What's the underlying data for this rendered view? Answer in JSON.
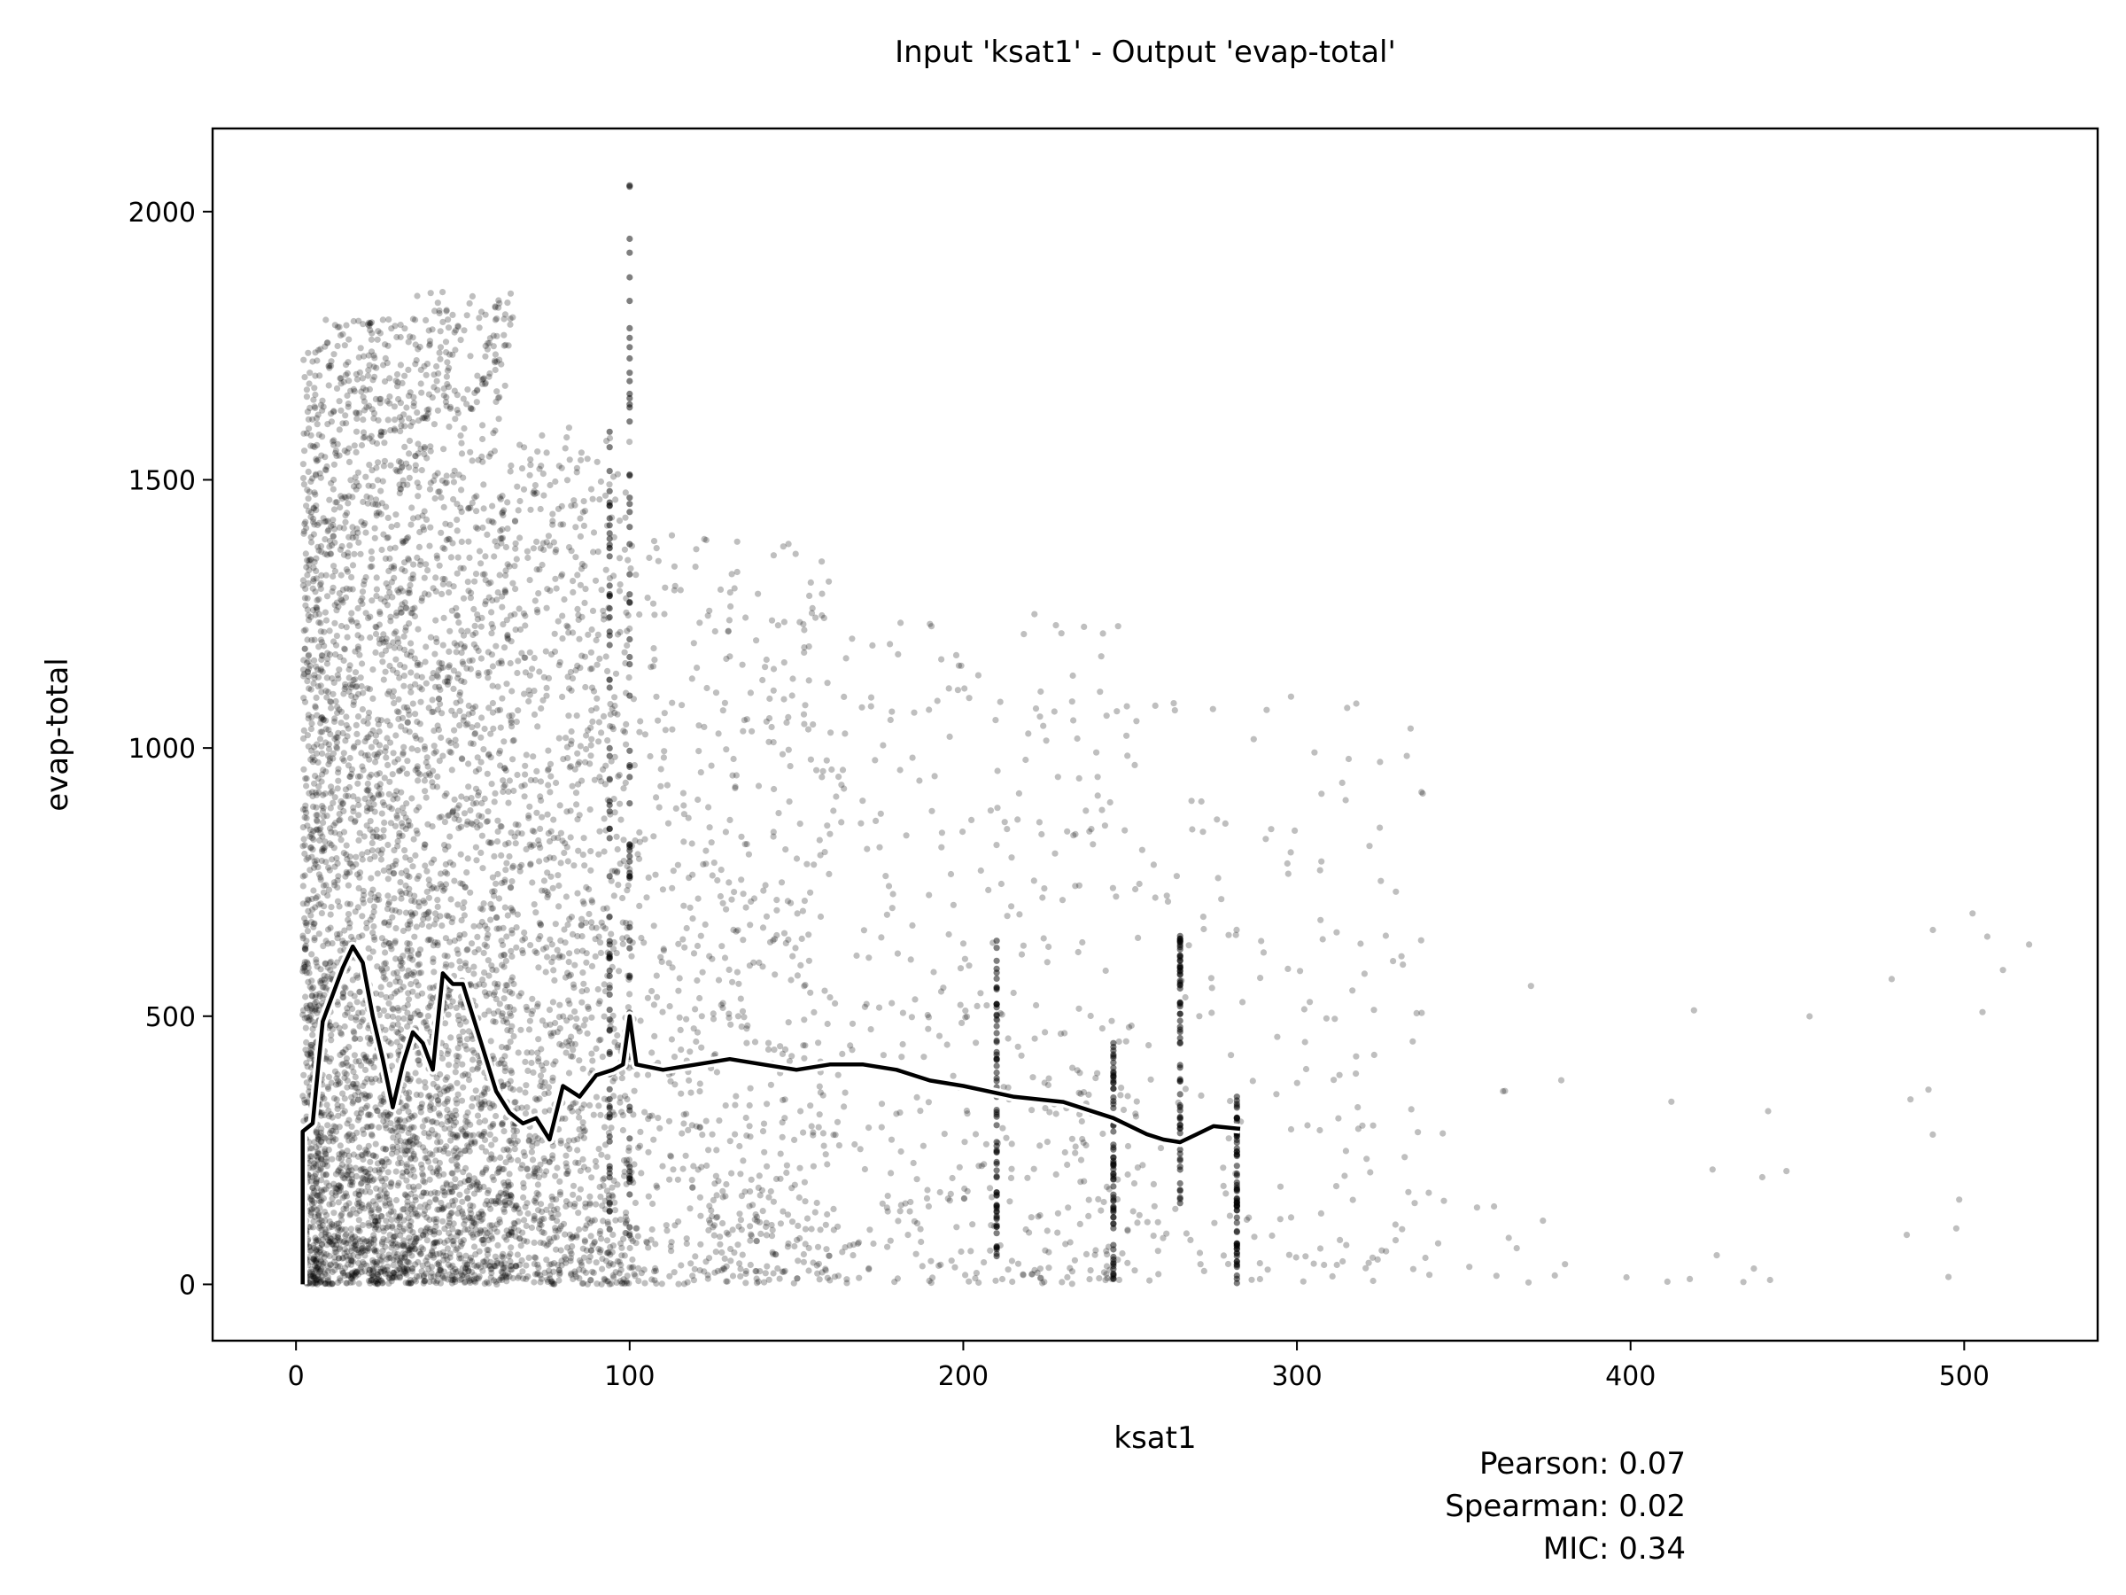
{
  "chart_data": {
    "type": "scatter",
    "title": "Input 'ksat1' - Output 'evap-total'",
    "xlabel": "ksat1",
    "ylabel": "evap-total",
    "xlim": [
      -25,
      540
    ],
    "ylim": [
      -105,
      2155
    ],
    "xticks": [
      0,
      100,
      200,
      300,
      400,
      500
    ],
    "yticks": [
      0,
      500,
      1000,
      1500,
      2000
    ],
    "grid": false,
    "point_color": "#000000",
    "point_alpha": 0.25,
    "trend_line_color": "#000000",
    "trend_halo_color": "#ffffff",
    "scatter_density": [
      {
        "x_range": [
          2,
          8
        ],
        "y_range": [
          0,
          1750
        ],
        "n": 700
      },
      {
        "x_range": [
          8,
          35
        ],
        "y_range": [
          0,
          1800
        ],
        "n": 2000
      },
      {
        "x_range": [
          35,
          65
        ],
        "y_range": [
          0,
          1850
        ],
        "n": 1700
      },
      {
        "x_range": [
          65,
          100
        ],
        "y_range": [
          0,
          1600
        ],
        "n": 1100
      },
      {
        "x_range": [
          100,
          160
        ],
        "y_range": [
          0,
          1400
        ],
        "n": 700
      },
      {
        "x_range": [
          160,
          250
        ],
        "y_range": [
          0,
          1250
        ],
        "n": 450
      },
      {
        "x_range": [
          250,
          340
        ],
        "y_range": [
          0,
          1100
        ],
        "n": 200
      },
      {
        "x_range": [
          340,
          520
        ],
        "y_range": [
          0,
          700
        ],
        "n": 45
      }
    ],
    "vertical_streaks": [
      {
        "x": 100,
        "y_range": [
          0,
          2050
        ]
      },
      {
        "x": 94,
        "y_range": [
          100,
          1600
        ]
      },
      {
        "x": 265,
        "y_range": [
          150,
          650
        ]
      },
      {
        "x": 282,
        "y_range": [
          0,
          350
        ]
      },
      {
        "x": 210,
        "y_range": [
          50,
          650
        ]
      },
      {
        "x": 245,
        "y_range": [
          0,
          450
        ]
      }
    ],
    "trend_line": {
      "x": [
        2,
        2,
        5,
        8,
        11,
        14,
        17,
        20,
        23,
        26,
        29,
        32,
        35,
        38,
        41,
        44,
        47,
        50,
        53,
        56,
        60,
        64,
        68,
        72,
        76,
        80,
        85,
        90,
        95,
        98,
        100,
        102,
        110,
        120,
        130,
        140,
        150,
        160,
        170,
        180,
        190,
        200,
        215,
        230,
        245,
        255,
        260,
        265,
        270,
        275,
        283
      ],
      "y": [
        0,
        285,
        300,
        490,
        540,
        590,
        630,
        600,
        500,
        420,
        330,
        410,
        470,
        450,
        400,
        580,
        560,
        560,
        500,
        440,
        360,
        320,
        300,
        310,
        270,
        370,
        350,
        390,
        400,
        410,
        500,
        410,
        400,
        410,
        420,
        410,
        400,
        410,
        410,
        400,
        380,
        370,
        350,
        340,
        310,
        280,
        270,
        265,
        280,
        295,
        290
      ]
    }
  },
  "stats": {
    "pearson": "Pearson: 0.07",
    "spearman": "Spearman: 0.02",
    "mic": "MIC: 0.34"
  }
}
